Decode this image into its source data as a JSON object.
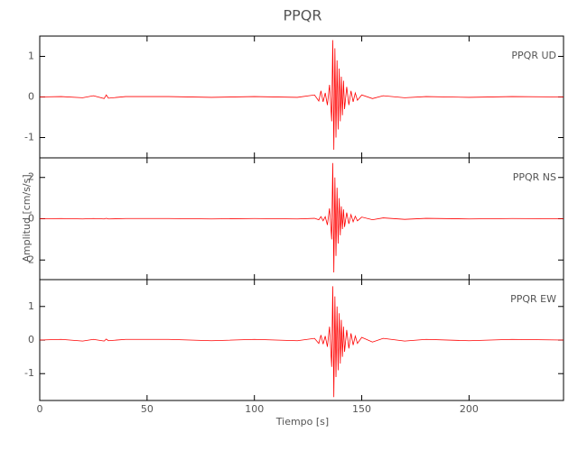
{
  "title": "PPQR",
  "x_label": "Tiempo [s]",
  "y_label": "Amplitud [cm/s/s]",
  "chart_data": [
    {
      "type": "line",
      "label": "PPQR   UD",
      "color": "#ff0000",
      "x": [
        0,
        10,
        20,
        25,
        30,
        31,
        32,
        40,
        60,
        80,
        100,
        120,
        128,
        130,
        131,
        132,
        133,
        134,
        135,
        136,
        136.5,
        137,
        137.5,
        138,
        138.5,
        139,
        139.5,
        140,
        140.5,
        141,
        141.5,
        142,
        143,
        144,
        145,
        146,
        147,
        148,
        150,
        155,
        160,
        170,
        180,
        200,
        220,
        244
      ],
      "values": [
        0,
        0.01,
        -0.02,
        0.03,
        -0.04,
        0.05,
        -0.03,
        0.01,
        0.01,
        -0.01,
        0.01,
        -0.01,
        0.05,
        -0.1,
        0.15,
        -0.12,
        0.1,
        -0.2,
        0.3,
        -0.6,
        1.4,
        -1.3,
        1.2,
        -1.0,
        0.9,
        -0.8,
        0.7,
        -0.6,
        0.5,
        -0.45,
        0.4,
        -0.3,
        0.25,
        -0.2,
        0.15,
        -0.12,
        0.1,
        -0.08,
        0.05,
        -0.04,
        0.03,
        -0.02,
        0.01,
        -0.01,
        0.01,
        0
      ],
      "xlim": [
        0,
        244
      ],
      "xticks": [
        0,
        50,
        100,
        150,
        200
      ],
      "ylim": [
        -1.5,
        1.5
      ],
      "yticks": [
        -1,
        0,
        1
      ]
    },
    {
      "type": "line",
      "label": "PPQR   NS",
      "color": "#ff0000",
      "x": [
        0,
        10,
        20,
        25,
        30,
        31,
        32,
        40,
        60,
        80,
        100,
        120,
        128,
        130,
        131,
        132,
        133,
        134,
        135,
        136,
        136.5,
        137,
        137.5,
        138,
        138.5,
        139,
        139.5,
        140,
        140.5,
        141,
        141.5,
        142,
        143,
        144,
        145,
        146,
        147,
        148,
        150,
        155,
        160,
        170,
        180,
        200,
        220,
        244
      ],
      "values": [
        0,
        0.01,
        -0.01,
        0.01,
        -0.01,
        0.02,
        -0.01,
        0.01,
        0.01,
        -0.01,
        0.01,
        -0.01,
        0.02,
        -0.05,
        0.1,
        -0.1,
        0.1,
        -0.3,
        0.5,
        -1.0,
        2.7,
        -2.6,
        2.0,
        -1.8,
        1.5,
        -1.2,
        1.0,
        -0.8,
        0.6,
        -0.5,
        0.45,
        -0.4,
        0.3,
        -0.25,
        0.2,
        -0.15,
        0.12,
        -0.1,
        0.08,
        -0.05,
        0.04,
        -0.03,
        0.02,
        -0.01,
        0.01,
        0
      ],
      "xlim": [
        0,
        244
      ],
      "xticks": [
        0,
        50,
        100,
        150,
        200
      ],
      "ylim": [
        -2.95,
        2.95
      ],
      "yticks": [
        -2,
        0,
        2
      ]
    },
    {
      "type": "line",
      "label": "PPQR   EW",
      "color": "#ff0000",
      "x": [
        0,
        10,
        20,
        25,
        30,
        31,
        32,
        40,
        60,
        80,
        100,
        120,
        128,
        130,
        131,
        132,
        133,
        134,
        135,
        136,
        136.5,
        137,
        137.5,
        138,
        138.5,
        139,
        139.5,
        140,
        140.5,
        141,
        141.5,
        142,
        143,
        144,
        145,
        146,
        147,
        148,
        150,
        155,
        160,
        170,
        180,
        200,
        220,
        244
      ],
      "values": [
        0,
        0.02,
        -0.03,
        0.02,
        -0.03,
        0.03,
        -0.02,
        0.02,
        0.02,
        -0.02,
        0.02,
        -0.02,
        0.05,
        -0.1,
        0.15,
        -0.12,
        0.12,
        -0.2,
        0.4,
        -0.8,
        1.6,
        -1.7,
        1.3,
        -1.1,
        1.0,
        -0.9,
        0.8,
        -0.7,
        0.6,
        -0.5,
        0.4,
        -0.35,
        0.3,
        -0.25,
        0.2,
        -0.15,
        0.12,
        -0.1,
        0.08,
        -0.06,
        0.05,
        -0.03,
        0.02,
        -0.02,
        0.02,
        0
      ],
      "xlim": [
        0,
        244
      ],
      "xticks": [
        0,
        50,
        100,
        150,
        200
      ],
      "ylim": [
        -1.8,
        1.8
      ],
      "yticks": [
        -1,
        0,
        1
      ]
    }
  ]
}
